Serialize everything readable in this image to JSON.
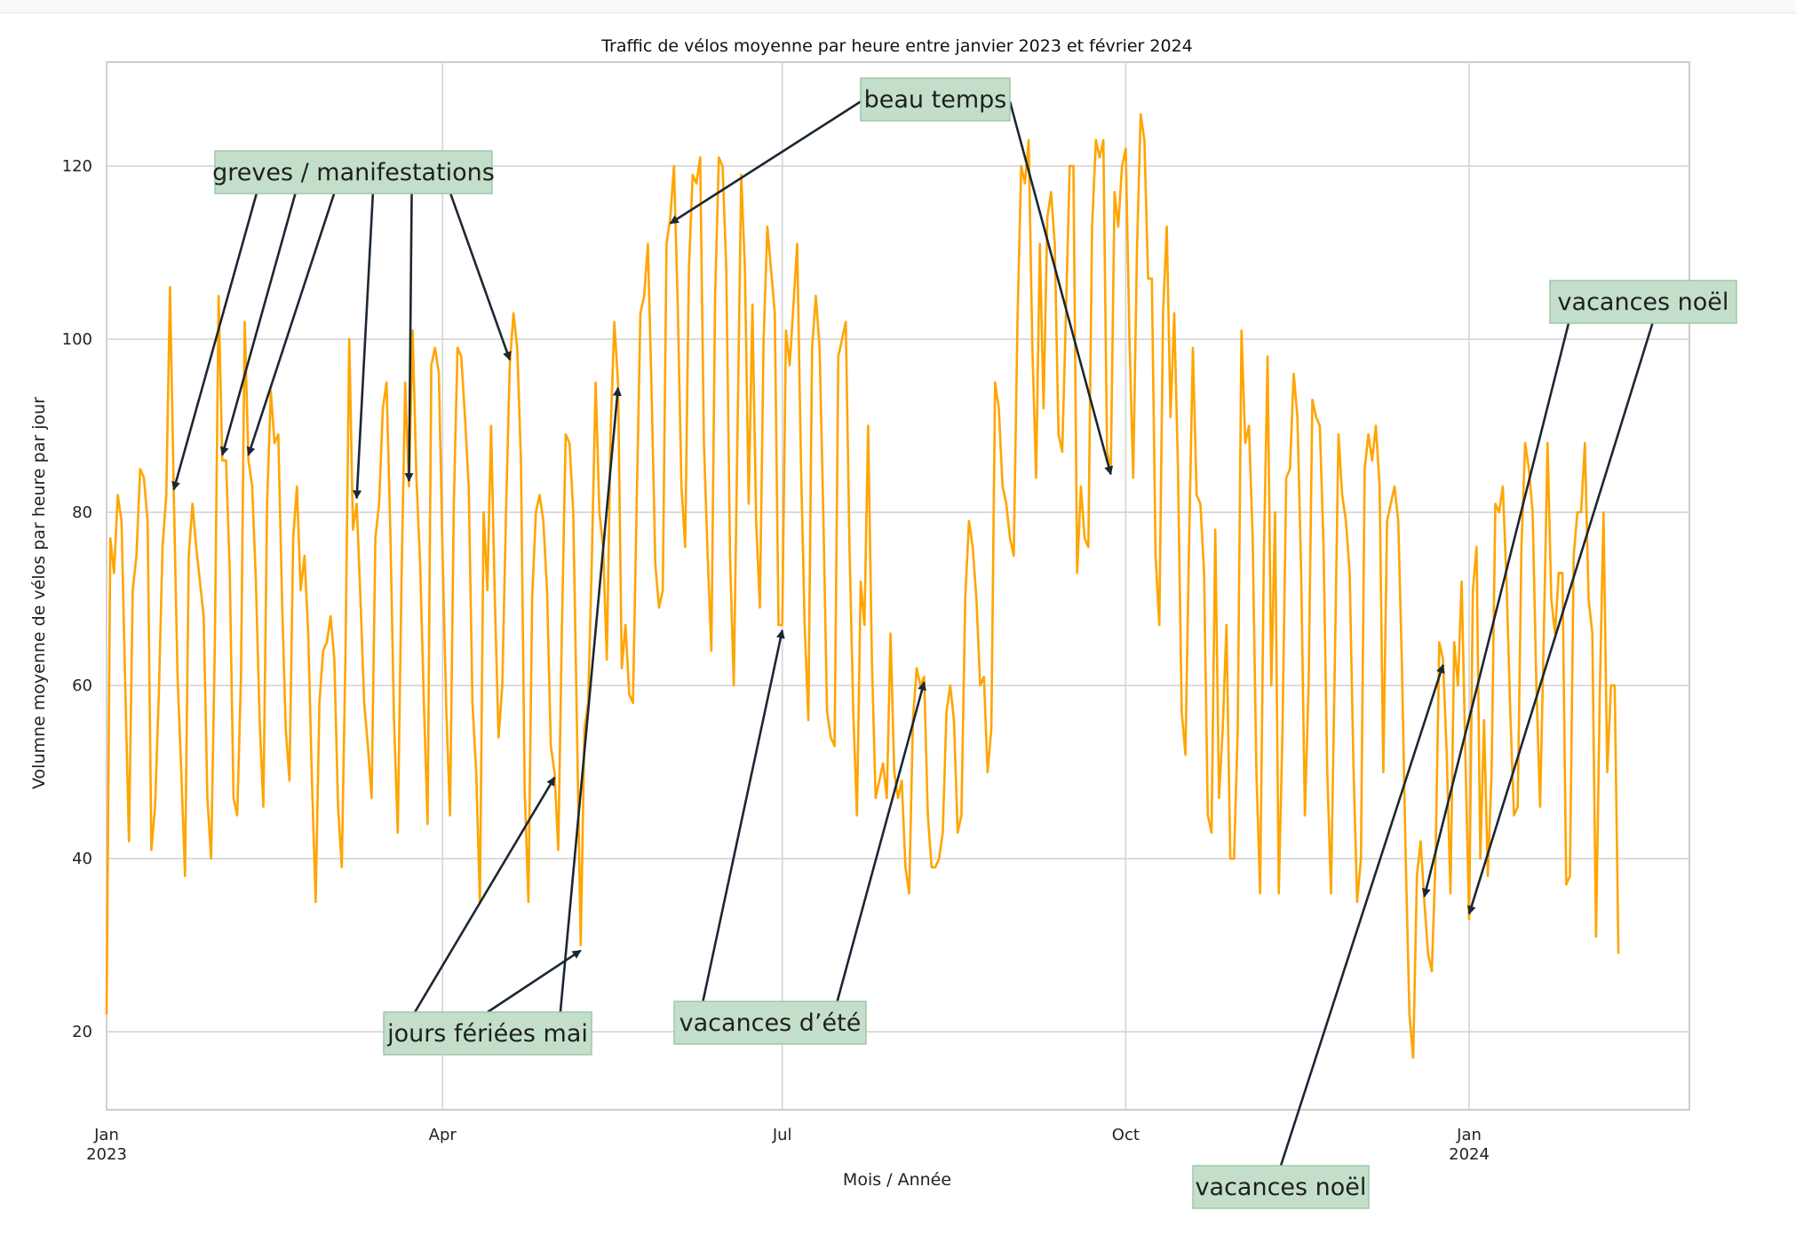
{
  "colors": {
    "line": "#FFA500",
    "grid": "#d4d4d4",
    "frame": "#cccccc",
    "annotation_fill": "#c3dfca",
    "annotation_stroke": "#9fc7aa",
    "arrow": "#1c2733"
  },
  "chart_data": {
    "type": "line",
    "title": "Traffic de vélos moyenne par heure entre janvier 2023 et février 2024",
    "xlabel": "Mois / Année",
    "ylabel": "Volumne moyenne de vélos par heure par jour",
    "ylim": [
      11,
      132
    ],
    "xlim": [
      "2023-01-01",
      "2024-02-29"
    ],
    "grid": true,
    "y_ticks": [
      20,
      40,
      60,
      80,
      100,
      120
    ],
    "x_ticks": [
      {
        "date": "2023-01-01",
        "label": "Jan",
        "sublabel": "2023"
      },
      {
        "date": "2023-04-01",
        "label": "Apr",
        "sublabel": ""
      },
      {
        "date": "2023-07-01",
        "label": "Jul",
        "sublabel": ""
      },
      {
        "date": "2023-10-01",
        "label": "Oct",
        "sublabel": ""
      },
      {
        "date": "2024-01-01",
        "label": "Jan",
        "sublabel": "2024"
      }
    ],
    "series": [
      {
        "start_date": "2023-01-01",
        "values": [
          22,
          77,
          73,
          82,
          79,
          60,
          42,
          71,
          75,
          85,
          84,
          79,
          41,
          46,
          59,
          76,
          82,
          106,
          82,
          61,
          50,
          38,
          75,
          81,
          76,
          72,
          68,
          47,
          40,
          65,
          105,
          86,
          86,
          73,
          47,
          45,
          61,
          102,
          86,
          83,
          72,
          56,
          46,
          81,
          94,
          88,
          89,
          70,
          55,
          49,
          77,
          83,
          71,
          75,
          66,
          49,
          35,
          58,
          64,
          65,
          68,
          63,
          46,
          39,
          64,
          100,
          78,
          81,
          70,
          58,
          53,
          47,
          77,
          81,
          92,
          95,
          78,
          56,
          43,
          72,
          95,
          83,
          101,
          84,
          74,
          58,
          44,
          97,
          99,
          96,
          75,
          57,
          45,
          81,
          99,
          98,
          91,
          83,
          58,
          50,
          35,
          80,
          71,
          90,
          70,
          54,
          60,
          80,
          97,
          103,
          99,
          86,
          48,
          35,
          70,
          80,
          82,
          79,
          71,
          53,
          50,
          41,
          67,
          89,
          88,
          80,
          55,
          30,
          55,
          58,
          75,
          95,
          80,
          76,
          63,
          89,
          102,
          95,
          62,
          67,
          59,
          58,
          81,
          103,
          105,
          111,
          94,
          74,
          69,
          71,
          111,
          114,
          120,
          104,
          83,
          76,
          108,
          119,
          118,
          121,
          88,
          75,
          64,
          105,
          121,
          120,
          108,
          75,
          60,
          89,
          119,
          108,
          81,
          104,
          79,
          69,
          100,
          113,
          108,
          103,
          67,
          67,
          101,
          97,
          104,
          111,
          86,
          67,
          56,
          99,
          105,
          99,
          80,
          57,
          54,
          53,
          98,
          100,
          102,
          76,
          57,
          45,
          72,
          67,
          90,
          63,
          47,
          49,
          51,
          47,
          66,
          50,
          47,
          49,
          39,
          36,
          56,
          62,
          60,
          61,
          45,
          39,
          39,
          40,
          43,
          57,
          60,
          56,
          43,
          45,
          70,
          79,
          76,
          70,
          60,
          61,
          50,
          55,
          95,
          92,
          83,
          81,
          77,
          75,
          102,
          120,
          118,
          123,
          99,
          84,
          111,
          92,
          114,
          117,
          111,
          89,
          87,
          103,
          120,
          120,
          73,
          83,
          77,
          76,
          113,
          123,
          121,
          123,
          87,
          85,
          117,
          113,
          120,
          122,
          100,
          84,
          110,
          126,
          123,
          107,
          107,
          75,
          67,
          103,
          113,
          91,
          103,
          85,
          57,
          52,
          77,
          99,
          82,
          81,
          73,
          45,
          43,
          78,
          47,
          55,
          67,
          40,
          40,
          55,
          101,
          88,
          90,
          77,
          50,
          36,
          75,
          98,
          60,
          80,
          36,
          55,
          84,
          85,
          96,
          91,
          73,
          45,
          60,
          93,
          91,
          90,
          76,
          50,
          36,
          62,
          89,
          82,
          79,
          73,
          51,
          35,
          40,
          85,
          89,
          86,
          90,
          83,
          50,
          79,
          81,
          83,
          79,
          62,
          40,
          22,
          17,
          38,
          42,
          35,
          29,
          27,
          40,
          65,
          63,
          52,
          36,
          65,
          60,
          72,
          52,
          33,
          71,
          76,
          40,
          56,
          38,
          50,
          81,
          80,
          83,
          72,
          57,
          45,
          46,
          76,
          88,
          85,
          80,
          60,
          46,
          66,
          88,
          70,
          66,
          73,
          73,
          37,
          38,
          75,
          80,
          80,
          88,
          70,
          66,
          31,
          59,
          80,
          50,
          60,
          60,
          29
        ]
      }
    ],
    "annotations": [
      {
        "label": "greves / manifestations",
        "targets": [
          "2023-01-19",
          "2023-02-01",
          "2023-02-08",
          "2023-03-09",
          "2023-03-23",
          "2023-04-19"
        ]
      },
      {
        "label": "jours fériées mai",
        "targets": [
          "2023-05-01",
          "2023-05-08",
          "2023-05-18"
        ]
      },
      {
        "label": "beau temps",
        "targets": [
          "2023-06-01",
          "2023-09-27"
        ]
      },
      {
        "label": "vacances d’été",
        "targets": [
          "2023-07-01",
          "2023-08-08"
        ]
      },
      {
        "label": "vacances noël",
        "targets": [
          "2023-12-20",
          "2024-01-01"
        ]
      },
      {
        "label": "vacances noël",
        "targets": [
          "2023-12-25"
        ]
      }
    ]
  }
}
